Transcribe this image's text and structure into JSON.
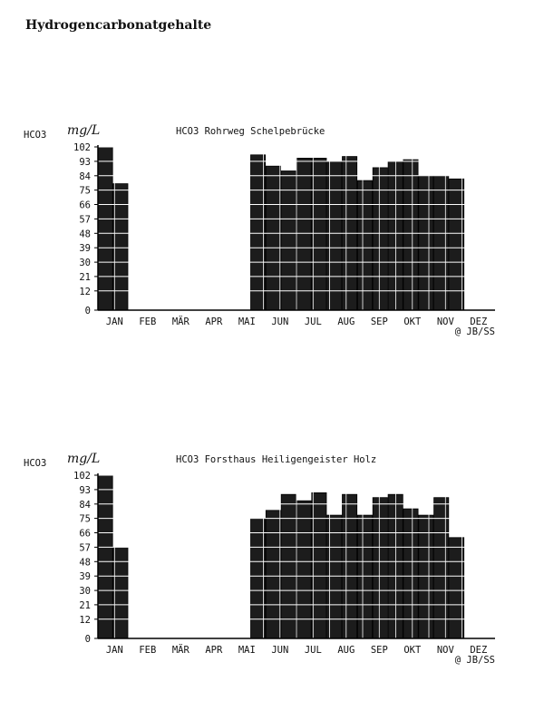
{
  "page_title": "Hydrogencarbonatgehalte",
  "chart_data": [
    {
      "type": "bar",
      "title": "HCO3 Rohrweg Schelpebrücke",
      "parameter": "HCO3",
      "unit": "mg/L",
      "credit": "@ JB/SS",
      "ylim": [
        0,
        102
      ],
      "yticks": [
        0,
        12,
        21,
        30,
        39,
        48,
        57,
        66,
        75,
        84,
        93,
        102
      ],
      "months": [
        "JAN",
        "FEB",
        "MÄR",
        "APR",
        "MAI",
        "JUN",
        "JUL",
        "AUG",
        "SEP",
        "OKT",
        "NOV",
        "DEZ"
      ],
      "values": [
        102,
        79,
        0,
        0,
        0,
        0,
        0,
        0,
        0,
        0,
        97,
        90,
        87,
        95,
        95,
        93,
        96,
        81,
        89,
        93,
        94,
        84,
        84,
        82,
        0,
        0
      ],
      "grid": true
    },
    {
      "type": "bar",
      "title": "HCO3 Forsthaus Heiligengeister Holz",
      "parameter": "HCO3",
      "unit": "mg/L",
      "credit": "@ JB/SS",
      "ylim": [
        0,
        102
      ],
      "yticks": [
        0,
        12,
        21,
        30,
        39,
        48,
        57,
        66,
        75,
        84,
        93,
        102
      ],
      "months": [
        "JAN",
        "FEB",
        "MÄR",
        "APR",
        "MAI",
        "JUN",
        "JUL",
        "AUG",
        "SEP",
        "OKT",
        "NOV",
        "DEZ"
      ],
      "values": [
        102,
        57,
        0,
        0,
        0,
        0,
        0,
        0,
        0,
        0,
        75,
        80,
        90,
        86,
        91,
        77,
        90,
        77,
        88,
        90,
        81,
        77,
        88,
        63,
        0,
        0
      ],
      "grid": true
    }
  ]
}
